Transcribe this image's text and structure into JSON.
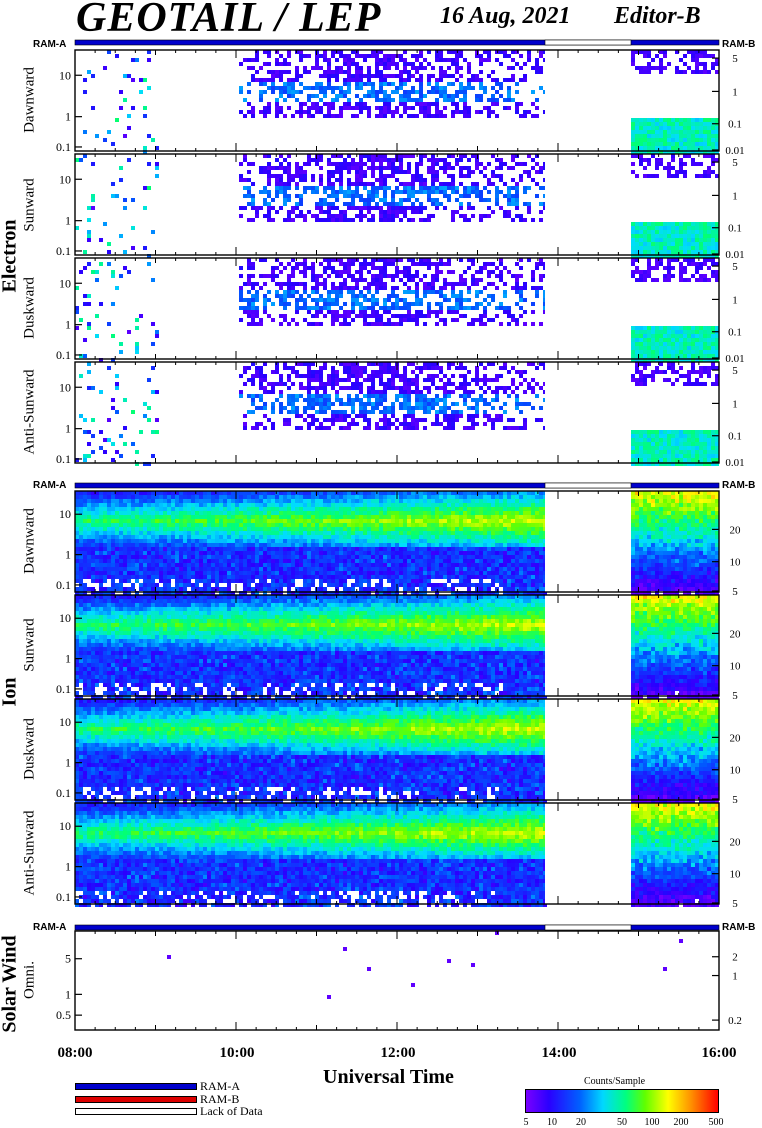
{
  "header": {
    "title": "GEOTAIL / LEP",
    "date": "16 Aug, 2021",
    "editor": "Editor-B"
  },
  "groups": {
    "electron": "Electron",
    "ion": "Ion",
    "solar_wind": "Solar Wind"
  },
  "ram": {
    "a": "RAM-A",
    "b": "RAM-B"
  },
  "xaxis": {
    "title": "Universal Time",
    "ticks": [
      "08:00",
      "10:00",
      "12:00",
      "14:00",
      "16:00"
    ]
  },
  "legend": {
    "ram_a": "RAM-A",
    "ram_b": "RAM-B",
    "lack": "Lack of Data",
    "colorbar_title": "Counts/Sample",
    "colorbar_ticks": [
      "5",
      "10",
      "20",
      "50",
      "100",
      "200",
      "500"
    ]
  },
  "colors": {
    "ram_a": "#0000cc",
    "ram_b": "#dd0000",
    "lack": "#ffffff"
  },
  "chart_data": [
    {
      "type": "heatmap",
      "name": "Electron Dawnward",
      "ylabel": "Dawnward",
      "left_ticks": [
        "10",
        "1",
        "0.1"
      ],
      "right_ticks": [
        "5",
        "1",
        "0.1",
        "0.01"
      ]
    },
    {
      "type": "heatmap",
      "name": "Electron Sunward",
      "ylabel": "Sunward",
      "left_ticks": [
        "10",
        "1",
        "0.1"
      ],
      "right_ticks": [
        "5",
        "1",
        "0.1",
        "0.01"
      ]
    },
    {
      "type": "heatmap",
      "name": "Electron Duskward",
      "ylabel": "Duskward",
      "left_ticks": [
        "10",
        "1",
        "0.1"
      ],
      "right_ticks": [
        "5",
        "1",
        "0.1",
        "0.01"
      ]
    },
    {
      "type": "heatmap",
      "name": "Electron Anti-Sunward",
      "ylabel": "Anti-Sunward",
      "left_ticks": [
        "10",
        "1",
        "0.1"
      ],
      "right_ticks": [
        "5",
        "1",
        "0.1",
        "0.01"
      ]
    },
    {
      "type": "heatmap",
      "name": "Ion Dawnward",
      "ylabel": "Dawnward",
      "left_ticks": [
        "10",
        "1",
        "0.1"
      ],
      "right_ticks": [
        "20",
        "10",
        "5"
      ]
    },
    {
      "type": "heatmap",
      "name": "Ion Sunward",
      "ylabel": "Sunward",
      "left_ticks": [
        "10",
        "1",
        "0.1"
      ],
      "right_ticks": [
        "20",
        "10",
        "5"
      ]
    },
    {
      "type": "heatmap",
      "name": "Ion Duskward",
      "ylabel": "Duskward",
      "left_ticks": [
        "10",
        "1",
        "0.1"
      ],
      "right_ticks": [
        "20",
        "10",
        "5"
      ]
    },
    {
      "type": "heatmap",
      "name": "Ion Anti-Sunward",
      "ylabel": "Anti-Sunward",
      "left_ticks": [
        "10",
        "1",
        "0.1"
      ],
      "right_ticks": [
        "20",
        "10",
        "5"
      ]
    },
    {
      "type": "heatmap",
      "name": "Solar Wind Omni.",
      "ylabel": "Omni.",
      "left_ticks": [
        "5",
        "1",
        "0.5"
      ],
      "right_ticks": [
        "2",
        "1",
        "0.2"
      ]
    }
  ]
}
